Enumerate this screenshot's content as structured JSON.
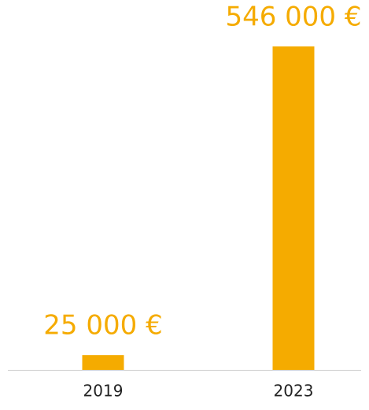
{
  "chart_data": {
    "type": "bar",
    "categories": [
      "2019",
      "2023"
    ],
    "values": [
      25000,
      546000
    ],
    "value_labels": [
      "25 000 €",
      "546 000 €"
    ],
    "color": "#f5ab00"
  }
}
